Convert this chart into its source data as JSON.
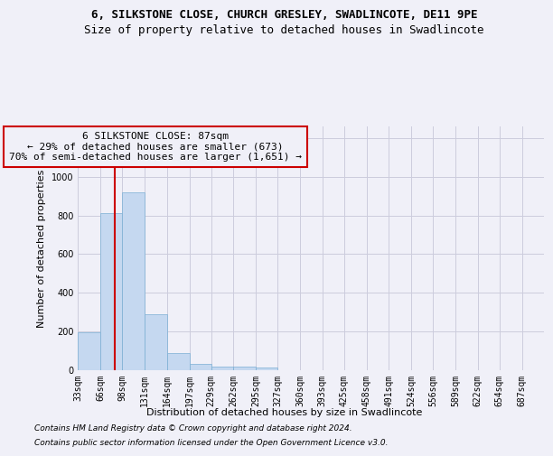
{
  "title": "6, SILKSTONE CLOSE, CHURCH GRESLEY, SWADLINCOTE, DE11 9PE",
  "subtitle": "Size of property relative to detached houses in Swadlincote",
  "xlabel": "Distribution of detached houses by size in Swadlincote",
  "ylabel": "Number of detached properties",
  "footnote1": "Contains HM Land Registry data © Crown copyright and database right 2024.",
  "footnote2": "Contains public sector information licensed under the Open Government Licence v3.0.",
  "bar_color": "#c5d8f0",
  "bar_edge_color": "#7bafd4",
  "annotation_box_color": "#cc0000",
  "annotation_text_line1": "6 SILKSTONE CLOSE: 87sqm",
  "annotation_text_line2": "← 29% of detached houses are smaller (673)",
  "annotation_text_line3": "70% of semi-detached houses are larger (1,651) →",
  "vline_x": 87,
  "vline_color": "#cc0000",
  "categories": [
    "33sqm",
    "66sqm",
    "98sqm",
    "131sqm",
    "164sqm",
    "197sqm",
    "229sqm",
    "262sqm",
    "295sqm",
    "327sqm",
    "360sqm",
    "393sqm",
    "425sqm",
    "458sqm",
    "491sqm",
    "524sqm",
    "556sqm",
    "589sqm",
    "622sqm",
    "654sqm",
    "687sqm"
  ],
  "bin_edges": [
    33,
    66,
    98,
    131,
    164,
    197,
    229,
    262,
    295,
    327,
    360,
    393,
    425,
    458,
    491,
    524,
    556,
    589,
    622,
    654,
    687,
    720
  ],
  "values": [
    195,
    810,
    920,
    290,
    87,
    35,
    20,
    17,
    12,
    0,
    0,
    0,
    0,
    0,
    0,
    0,
    0,
    0,
    0,
    0,
    0
  ],
  "ylim": [
    0,
    1260
  ],
  "yticks": [
    0,
    200,
    400,
    600,
    800,
    1000,
    1200
  ],
  "background_color": "#f0f0f8",
  "grid_color": "#ccccdd",
  "title_fontsize": 9,
  "subtitle_fontsize": 9,
  "axis_label_fontsize": 8,
  "tick_fontsize": 7,
  "annotation_fontsize": 8,
  "footnote_fontsize": 6.5
}
